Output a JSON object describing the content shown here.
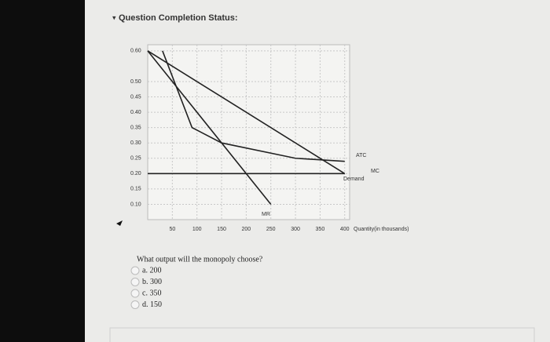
{
  "header": {
    "title": "Question Completion Status:"
  },
  "chart_data": {
    "type": "line",
    "x_label": "Quantity(in thousands)",
    "xlim": [
      0,
      410
    ],
    "ylim": [
      0.05,
      0.62
    ],
    "xticks": [
      50,
      100,
      150,
      200,
      250,
      300,
      350,
      400
    ],
    "yticks": [
      {
        "value": 0.6,
        "label": "0.60"
      },
      {
        "value": 0.5,
        "label": "0.50"
      },
      0.45,
      {
        "value": 0.4,
        "label": "0.40"
      },
      0.35,
      {
        "value": 0.3,
        "label": "0.30"
      },
      0.25,
      {
        "value": 0.2,
        "label": "0.20"
      },
      0.15,
      {
        "value": 0.1,
        "label": "0.10"
      }
    ],
    "grid": true,
    "series": [
      {
        "name": "Demand",
        "color": "#222222",
        "x": [
          0,
          400
        ],
        "values": [
          0.6,
          0.2
        ]
      },
      {
        "name": "MR",
        "color": "#222222",
        "x": [
          0,
          250
        ],
        "values": [
          0.6,
          0.1
        ]
      },
      {
        "name": "MC",
        "color": "#222222",
        "x": [
          0,
          400
        ],
        "values": [
          0.2,
          0.2
        ]
      },
      {
        "name": "ATC",
        "color": "#222222",
        "x": [
          30,
          90,
          150,
          300,
          400
        ],
        "values": [
          0.6,
          0.35,
          0.3,
          0.25,
          0.24
        ]
      }
    ]
  },
  "question": {
    "text": "What output will the monopoly choose?",
    "options": [
      "a. 200",
      "b. 300",
      "c. 350",
      "d. 150"
    ]
  }
}
